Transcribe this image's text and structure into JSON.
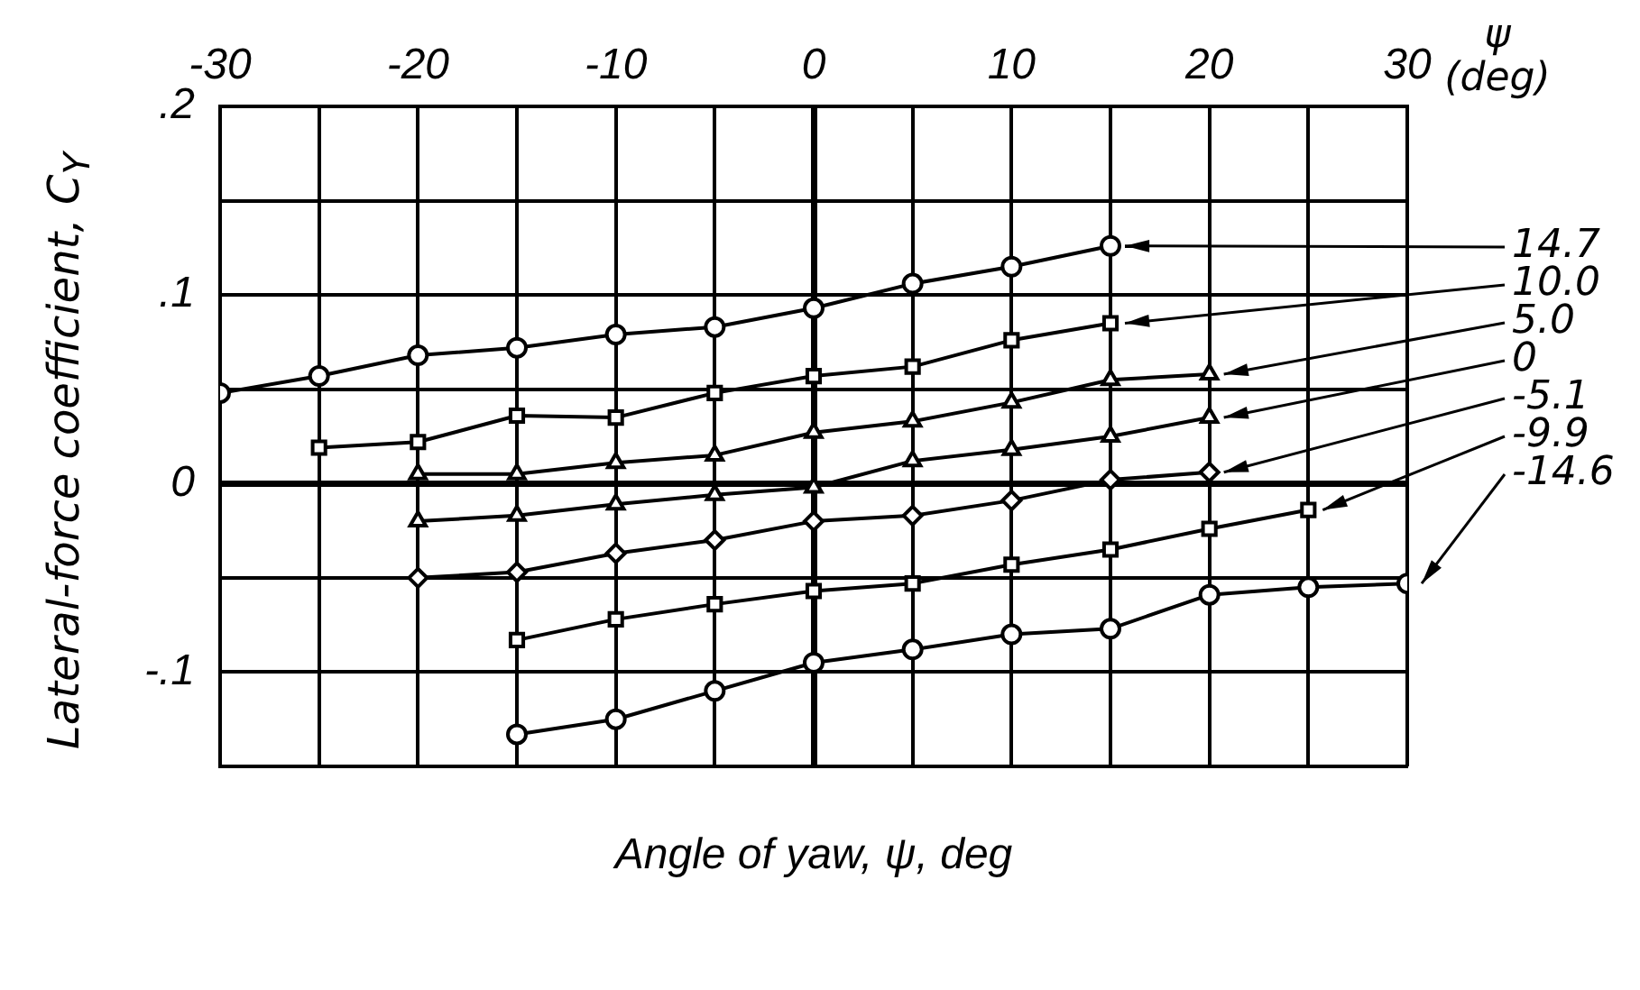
{
  "chart_data": {
    "type": "line",
    "xlabel": "Angle of yaw, ψ, deg",
    "ylabel": "Lateral-force coefficient, C$_{Y}$",
    "annotations": [
      "ψ (deg)"
    ],
    "xlim": [
      -30,
      30
    ],
    "xticks": [
      -30,
      {
        "value": -25,
        "label": null
      },
      -20,
      {
        "value": -15,
        "label": null
      },
      -10,
      {
        "value": -5,
        "label": null
      },
      0,
      {
        "value": 5,
        "label": null
      },
      10,
      {
        "value": 15,
        "label": null
      },
      20,
      {
        "value": 25,
        "label": null
      },
      30
    ],
    "ylim": [
      -0.15,
      0.2
    ],
    "yticks": [
      {
        "value": 0.2,
        "label": ".2"
      },
      {
        "value": 0.15,
        "label": null
      },
      {
        "value": 0.1,
        "label": ".1"
      },
      {
        "value": 0.05,
        "label": null
      },
      0,
      {
        "value": -0.05,
        "label": null
      },
      {
        "value": -0.1,
        "label": "-.1"
      },
      {
        "value": -0.15,
        "label": null
      }
    ],
    "grid": true,
    "line_style": "solid",
    "series": [
      {
        "name": "14.7",
        "color": "#000000",
        "marker": "circle",
        "x": [
          -30,
          -25,
          -20,
          -15,
          -10,
          -5,
          0,
          5,
          10,
          15
        ],
        "values": [
          0.048,
          0.057,
          0.068,
          0.072,
          0.079,
          0.083,
          0.093,
          0.106,
          0.115,
          0.126
        ]
      },
      {
        "name": "10.0",
        "color": "#000000",
        "marker": "square",
        "x": [
          -25,
          -20,
          -15,
          -10,
          -5,
          0,
          5,
          10,
          15
        ],
        "values": [
          0.019,
          0.022,
          0.036,
          0.035,
          0.048,
          0.057,
          0.062,
          0.076,
          0.085
        ]
      },
      {
        "name": "5.0",
        "color": "#000000",
        "marker": "triangle",
        "x": [
          -20,
          -15,
          -10,
          -5,
          0,
          5,
          10,
          15,
          20
        ],
        "values": [
          0.005,
          0.005,
          0.011,
          0.015,
          0.027,
          0.033,
          0.043,
          0.055,
          0.058
        ]
      },
      {
        "name": "0",
        "color": "#000000",
        "marker": "triangle",
        "x": [
          -20,
          -15,
          -10,
          -5,
          0,
          5,
          10,
          15,
          20
        ],
        "values": [
          -0.02,
          -0.017,
          -0.011,
          -0.006,
          -0.002,
          0.012,
          0.018,
          0.025,
          0.035
        ]
      },
      {
        "name": "-5.1",
        "color": "#000000",
        "marker": "diamond",
        "x": [
          -20,
          -15,
          -10,
          -5,
          0,
          5,
          10,
          15,
          20
        ],
        "values": [
          -0.05,
          -0.047,
          -0.037,
          -0.03,
          -0.02,
          -0.017,
          -0.009,
          0.002,
          0.006
        ]
      },
      {
        "name": "-9.9",
        "color": "#000000",
        "marker": "square",
        "x": [
          -15,
          -10,
          -5,
          0,
          5,
          10,
          15,
          20,
          25
        ],
        "values": [
          -0.083,
          -0.072,
          -0.064,
          -0.057,
          -0.053,
          -0.043,
          -0.035,
          -0.024,
          -0.014
        ]
      },
      {
        "name": "-14.6",
        "color": "#000000",
        "marker": "circle",
        "x": [
          -15,
          -10,
          -5,
          0,
          5,
          10,
          15,
          20,
          25,
          30
        ],
        "values": [
          -0.133,
          -0.125,
          -0.11,
          -0.095,
          -0.088,
          -0.08,
          -0.077,
          -0.059,
          -0.055,
          -0.053
        ]
      }
    ]
  }
}
